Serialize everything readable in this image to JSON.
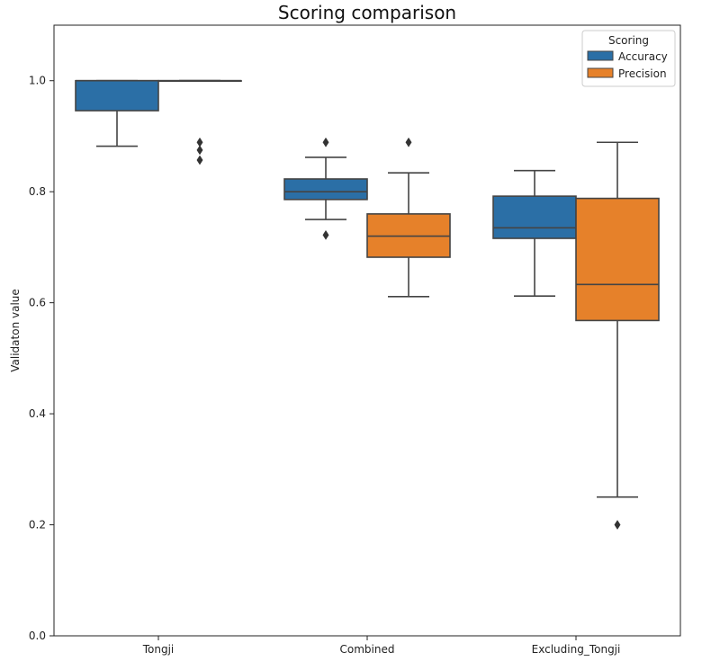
{
  "chart_data": {
    "type": "box",
    "title": "Scoring comparison",
    "xlabel": "",
    "ylabel": "Validaton value",
    "ylim": [
      0.0,
      1.1
    ],
    "yticks": [
      0.0,
      0.2,
      0.4,
      0.6,
      0.8,
      1.0
    ],
    "ytick_labels": [
      "0.0",
      "0.2",
      "0.4",
      "0.6",
      "0.8",
      "1.0"
    ],
    "categories": [
      "Tongji",
      "Combined",
      "Excluding_Tongji"
    ],
    "legend": {
      "title": "Scoring",
      "placement": "top-right",
      "entries": [
        "Accuracy",
        "Precision"
      ]
    },
    "colors": {
      "Accuracy": "#2b6fa6",
      "Precision": "#e6812a",
      "edge": "#444444"
    },
    "series": [
      {
        "name": "Accuracy",
        "boxes": [
          {
            "category": "Tongji",
            "whisker_low": 0.882,
            "q1": 0.946,
            "median": 1.0,
            "q3": 1.0,
            "whisker_high": 1.0,
            "outliers": []
          },
          {
            "category": "Combined",
            "whisker_low": 0.75,
            "q1": 0.786,
            "median": 0.8,
            "q3": 0.823,
            "whisker_high": 0.862,
            "outliers": [
              0.889,
              0.722
            ]
          },
          {
            "category": "Excluding_Tongji",
            "whisker_low": 0.612,
            "q1": 0.716,
            "median": 0.735,
            "q3": 0.792,
            "whisker_high": 0.838,
            "outliers": []
          }
        ]
      },
      {
        "name": "Precision",
        "boxes": [
          {
            "category": "Tongji",
            "whisker_low": 1.0,
            "q1": 1.0,
            "median": 1.0,
            "q3": 1.0,
            "whisker_high": 1.0,
            "outliers": [
              0.889,
              0.875,
              0.857
            ]
          },
          {
            "category": "Combined",
            "whisker_low": 0.611,
            "q1": 0.682,
            "median": 0.72,
            "q3": 0.76,
            "whisker_high": 0.834,
            "outliers": [
              0.889
            ]
          },
          {
            "category": "Excluding_Tongji",
            "whisker_low": 0.25,
            "q1": 0.568,
            "median": 0.633,
            "q3": 0.788,
            "whisker_high": 0.889,
            "outliers": [
              0.2
            ]
          }
        ]
      }
    ]
  }
}
